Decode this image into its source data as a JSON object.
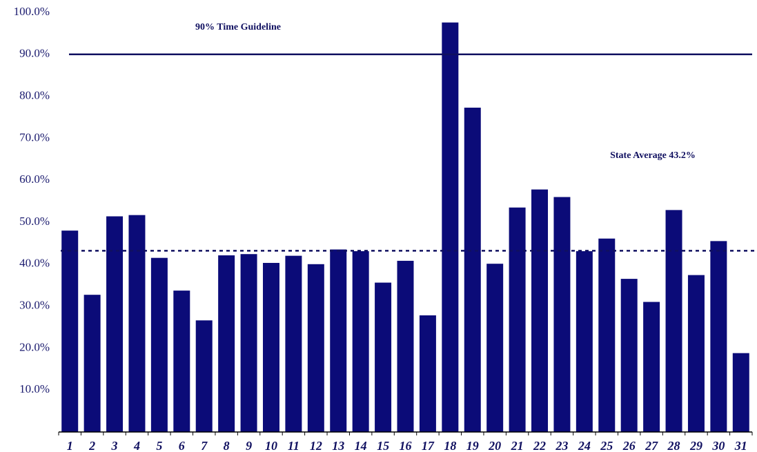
{
  "chart_data": {
    "type": "bar",
    "categories": [
      "1",
      "2",
      "3",
      "4",
      "5",
      "6",
      "7",
      "8",
      "9",
      "10",
      "11",
      "12",
      "13",
      "14",
      "15",
      "16",
      "17",
      "18",
      "19",
      "20",
      "21",
      "22",
      "23",
      "24",
      "25",
      "26",
      "27",
      "28",
      "29",
      "30",
      "31"
    ],
    "values": [
      48.0,
      32.7,
      51.4,
      51.7,
      41.5,
      33.7,
      26.6,
      42.1,
      42.4,
      40.3,
      42.0,
      40.0,
      43.5,
      43.1,
      35.6,
      40.8,
      27.8,
      97.6,
      77.3,
      40.1,
      53.5,
      57.8,
      56.0,
      43.1,
      46.1,
      36.5,
      31.0,
      52.9,
      37.4,
      45.5,
      18.8
    ],
    "color": "#0b0b78",
    "ylim": [
      0,
      100
    ],
    "yticks": [
      {
        "value": 10,
        "label": "10.0%"
      },
      {
        "value": 20,
        "label": "20.0%"
      },
      {
        "value": 30,
        "label": "30.0%"
      },
      {
        "value": 40,
        "label": "40.0%"
      },
      {
        "value": 50,
        "label": "50.0%"
      },
      {
        "value": 60,
        "label": "60.0%"
      },
      {
        "value": 70,
        "label": "70.0%"
      },
      {
        "value": 80,
        "label": "80.0%"
      },
      {
        "value": 90,
        "label": "90.0%"
      },
      {
        "value": 100,
        "label": "100.0%"
      }
    ],
    "grid": false,
    "reference_lines": [
      {
        "value": 90,
        "label": "90% Time Guideline",
        "style": "solid"
      },
      {
        "value": 43.2,
        "label": "State Average 43.2%",
        "style": "dotted"
      }
    ]
  }
}
